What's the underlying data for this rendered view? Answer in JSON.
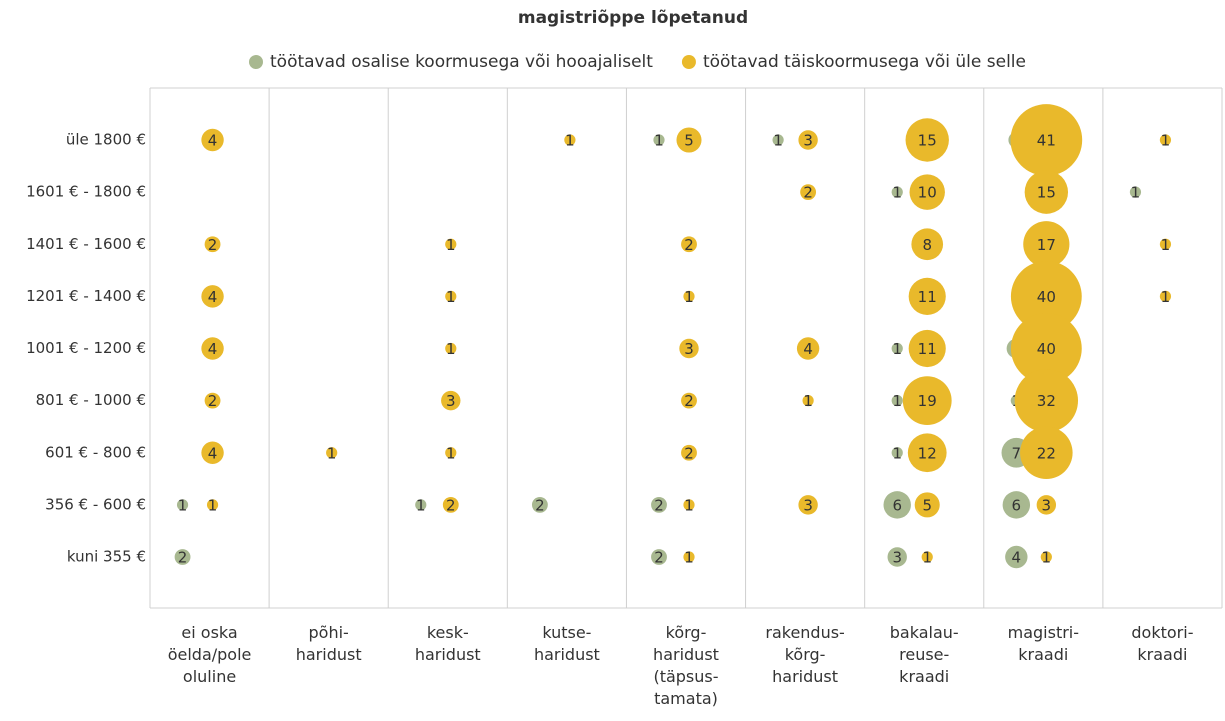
{
  "chart_data": {
    "type": "bubble",
    "title": "magistriõppe lõpetanud",
    "x_categories": [
      "ei oska\nöelda/pole\noluline",
      "põhi-\nharidust",
      "kesk-\nharidust",
      "kutse-\nharidust",
      "kõrg-\nharidust\n(täpsus-\ntamata)",
      "rakendus-\nkõrg-\nharidust",
      "bakalau-\nreuse-\nkraadi",
      "magistri-\nkraadi",
      "doktori-\nkraadi"
    ],
    "y_categories": [
      "kuni 355 €",
      "356 € - 600 €",
      "601 € - 800 €",
      "801 € - 1000 €",
      "1001 € - 1200 €",
      "1201 € - 1400 €",
      "1401 € - 1600 €",
      "1601 € - 1800 €",
      "üle 1800 €"
    ],
    "legend": "top",
    "series": [
      {
        "name": "töötavad osalise koormusega või hooajaliselt",
        "color": "#a8b890",
        "x": [
          "ei oska\nöelda/pole\noluline",
          "ei oska\nöelda/pole\noluline",
          "kesk-\nharidust",
          "kutse-\nharidust",
          "kõrg-\nharidust\n(täpsus-\ntamata)",
          "kõrg-\nharidust\n(täpsus-\ntamata)",
          "kõrg-\nharidust\n(täpsus-\ntamata)",
          "rakendus-\nkõrg-\nharidust",
          "bakalau-\nreuse-\nkraadi",
          "bakalau-\nreuse-\nkraadi",
          "bakalau-\nreuse-\nkraadi",
          "bakalau-\nreuse-\nkraadi",
          "bakalau-\nreuse-\nkraadi",
          "bakalau-\nreuse-\nkraadi",
          "magistri-\nkraadi",
          "magistri-\nkraadi",
          "magistri-\nkraadi",
          "magistri-\nkraadi",
          "magistri-\nkraadi",
          "magistri-\nkraadi",
          "doktori-\nkraadi"
        ],
        "y": [
          "356 € - 600 €",
          "kuni 355 €",
          "356 € - 600 €",
          "356 € - 600 €",
          "üle 1800 €",
          "356 € - 600 €",
          "kuni 355 €",
          "üle 1800 €",
          "1601 € - 1800 €",
          "1001 € - 1200 €",
          "801 € - 1000 €",
          "601 € - 800 €",
          "356 € - 600 €",
          "kuni 355 €",
          "üle 1800 €",
          "1001 € - 1200 €",
          "801 € - 1000 €",
          "601 € - 800 €",
          "356 € - 600 €",
          "kuni 355 €",
          "1601 € - 1800 €"
        ],
        "values": [
          1,
          2,
          1,
          2,
          1,
          2,
          2,
          1,
          1,
          1,
          1,
          1,
          6,
          3,
          2,
          3,
          1,
          7,
          6,
          4,
          1
        ]
      },
      {
        "name": "töötavad täiskoormusega või üle selle",
        "color": "#e9b92b",
        "x": [
          "ei oska\nöelda/pole\noluline",
          "ei oska\nöelda/pole\noluline",
          "ei oska\nöelda/pole\noluline",
          "ei oska\nöelda/pole\noluline",
          "ei oska\nöelda/pole\noluline",
          "ei oska\nöelda/pole\noluline",
          "ei oska\nöelda/pole\noluline",
          "põhi-\nharidust",
          "kesk-\nharidust",
          "kesk-\nharidust",
          "kesk-\nharidust",
          "kesk-\nharidust",
          "kesk-\nharidust",
          "kesk-\nharidust",
          "kutse-\nharidust",
          "kõrg-\nharidust\n(täpsus-\ntamata)",
          "kõrg-\nharidust\n(täpsus-\ntamata)",
          "kõrg-\nharidust\n(täpsus-\ntamata)",
          "kõrg-\nharidust\n(täpsus-\ntamata)",
          "kõrg-\nharidust\n(täpsus-\ntamata)",
          "kõrg-\nharidust\n(täpsus-\ntamata)",
          "kõrg-\nharidust\n(täpsus-\ntamata)",
          "kõrg-\nharidust\n(täpsus-\ntamata)",
          "rakendus-\nkõrg-\nharidust",
          "rakendus-\nkõrg-\nharidust",
          "rakendus-\nkõrg-\nharidust",
          "rakendus-\nkõrg-\nharidust",
          "rakendus-\nkõrg-\nharidust",
          "bakalau-\nreuse-\nkraadi",
          "bakalau-\nreuse-\nkraadi",
          "bakalau-\nreuse-\nkraadi",
          "bakalau-\nreuse-\nkraadi",
          "bakalau-\nreuse-\nkraadi",
          "bakalau-\nreuse-\nkraadi",
          "bakalau-\nreuse-\nkraadi",
          "bakalau-\nreuse-\nkraadi",
          "bakalau-\nreuse-\nkraadi",
          "magistri-\nkraadi",
          "magistri-\nkraadi",
          "magistri-\nkraadi",
          "magistri-\nkraadi",
          "magistri-\nkraadi",
          "magistri-\nkraadi",
          "magistri-\nkraadi",
          "magistri-\nkraadi",
          "magistri-\nkraadi",
          "doktori-\nkraadi",
          "doktori-\nkraadi",
          "doktori-\nkraadi"
        ],
        "y": [
          "üle 1800 €",
          "1401 € - 1600 €",
          "1201 € - 1400 €",
          "1001 € - 1200 €",
          "801 € - 1000 €",
          "601 € - 800 €",
          "356 € - 600 €",
          "601 € - 800 €",
          "1401 € - 1600 €",
          "1201 € - 1400 €",
          "1001 € - 1200 €",
          "801 € - 1000 €",
          "601 € - 800 €",
          "356 € - 600 €",
          "üle 1800 €",
          "üle 1800 €",
          "1401 € - 1600 €",
          "1201 € - 1400 €",
          "1001 € - 1200 €",
          "801 € - 1000 €",
          "601 € - 800 €",
          "356 € - 600 €",
          "kuni 355 €",
          "üle 1800 €",
          "1601 € - 1800 €",
          "1001 € - 1200 €",
          "801 € - 1000 €",
          "356 € - 600 €",
          "üle 1800 €",
          "1601 € - 1800 €",
          "1401 € - 1600 €",
          "1201 € - 1400 €",
          "1001 € - 1200 €",
          "801 € - 1000 €",
          "601 € - 800 €",
          "356 € - 600 €",
          "kuni 355 €",
          "üle 1800 €",
          "1601 € - 1800 €",
          "1401 € - 1600 €",
          "1201 € - 1400 €",
          "1001 € - 1200 €",
          "801 € - 1000 €",
          "601 € - 800 €",
          "356 € - 600 €",
          "kuni 355 €",
          "üle 1800 €",
          "1401 € - 1600 €",
          "1201 € - 1400 €"
        ],
        "values": [
          4,
          2,
          4,
          4,
          2,
          4,
          1,
          1,
          1,
          1,
          1,
          3,
          1,
          2,
          1,
          5,
          2,
          1,
          3,
          2,
          2,
          1,
          1,
          3,
          2,
          4,
          1,
          3,
          15,
          10,
          8,
          11,
          11,
          19,
          12,
          5,
          1,
          41,
          15,
          17,
          40,
          40,
          32,
          22,
          3,
          1,
          1,
          1,
          1
        ]
      }
    ]
  }
}
